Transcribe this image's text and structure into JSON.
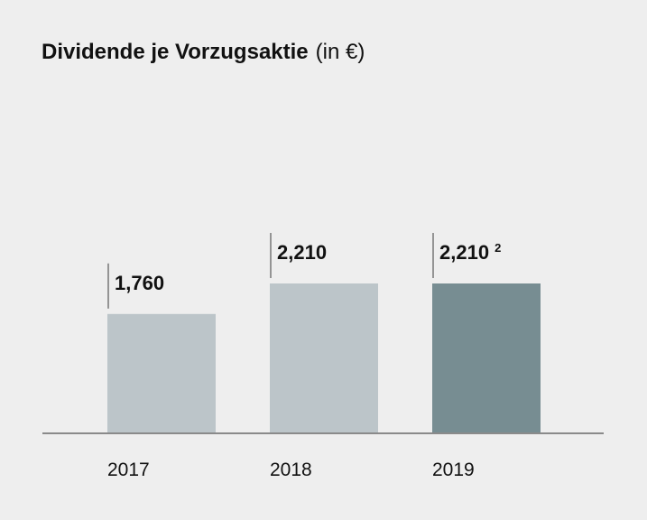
{
  "chart_data": {
    "type": "bar",
    "title": "Dividende je Vorzugsaktie",
    "unit": "(in €)",
    "categories": [
      "2017",
      "2018",
      "2019"
    ],
    "values": [
      1.76,
      2.21,
      2.21
    ],
    "data_labels": [
      "1,760",
      "2,210",
      "2,210"
    ],
    "footnotes": [
      "",
      "",
      "2"
    ],
    "ylim": [
      0,
      2.21
    ],
    "grid": false,
    "legend": "none",
    "colors": [
      "#bcc5c9",
      "#bcc5c9",
      "#778d92"
    ],
    "axis_color": "#8a8a8a",
    "leader_color": "#777777"
  }
}
